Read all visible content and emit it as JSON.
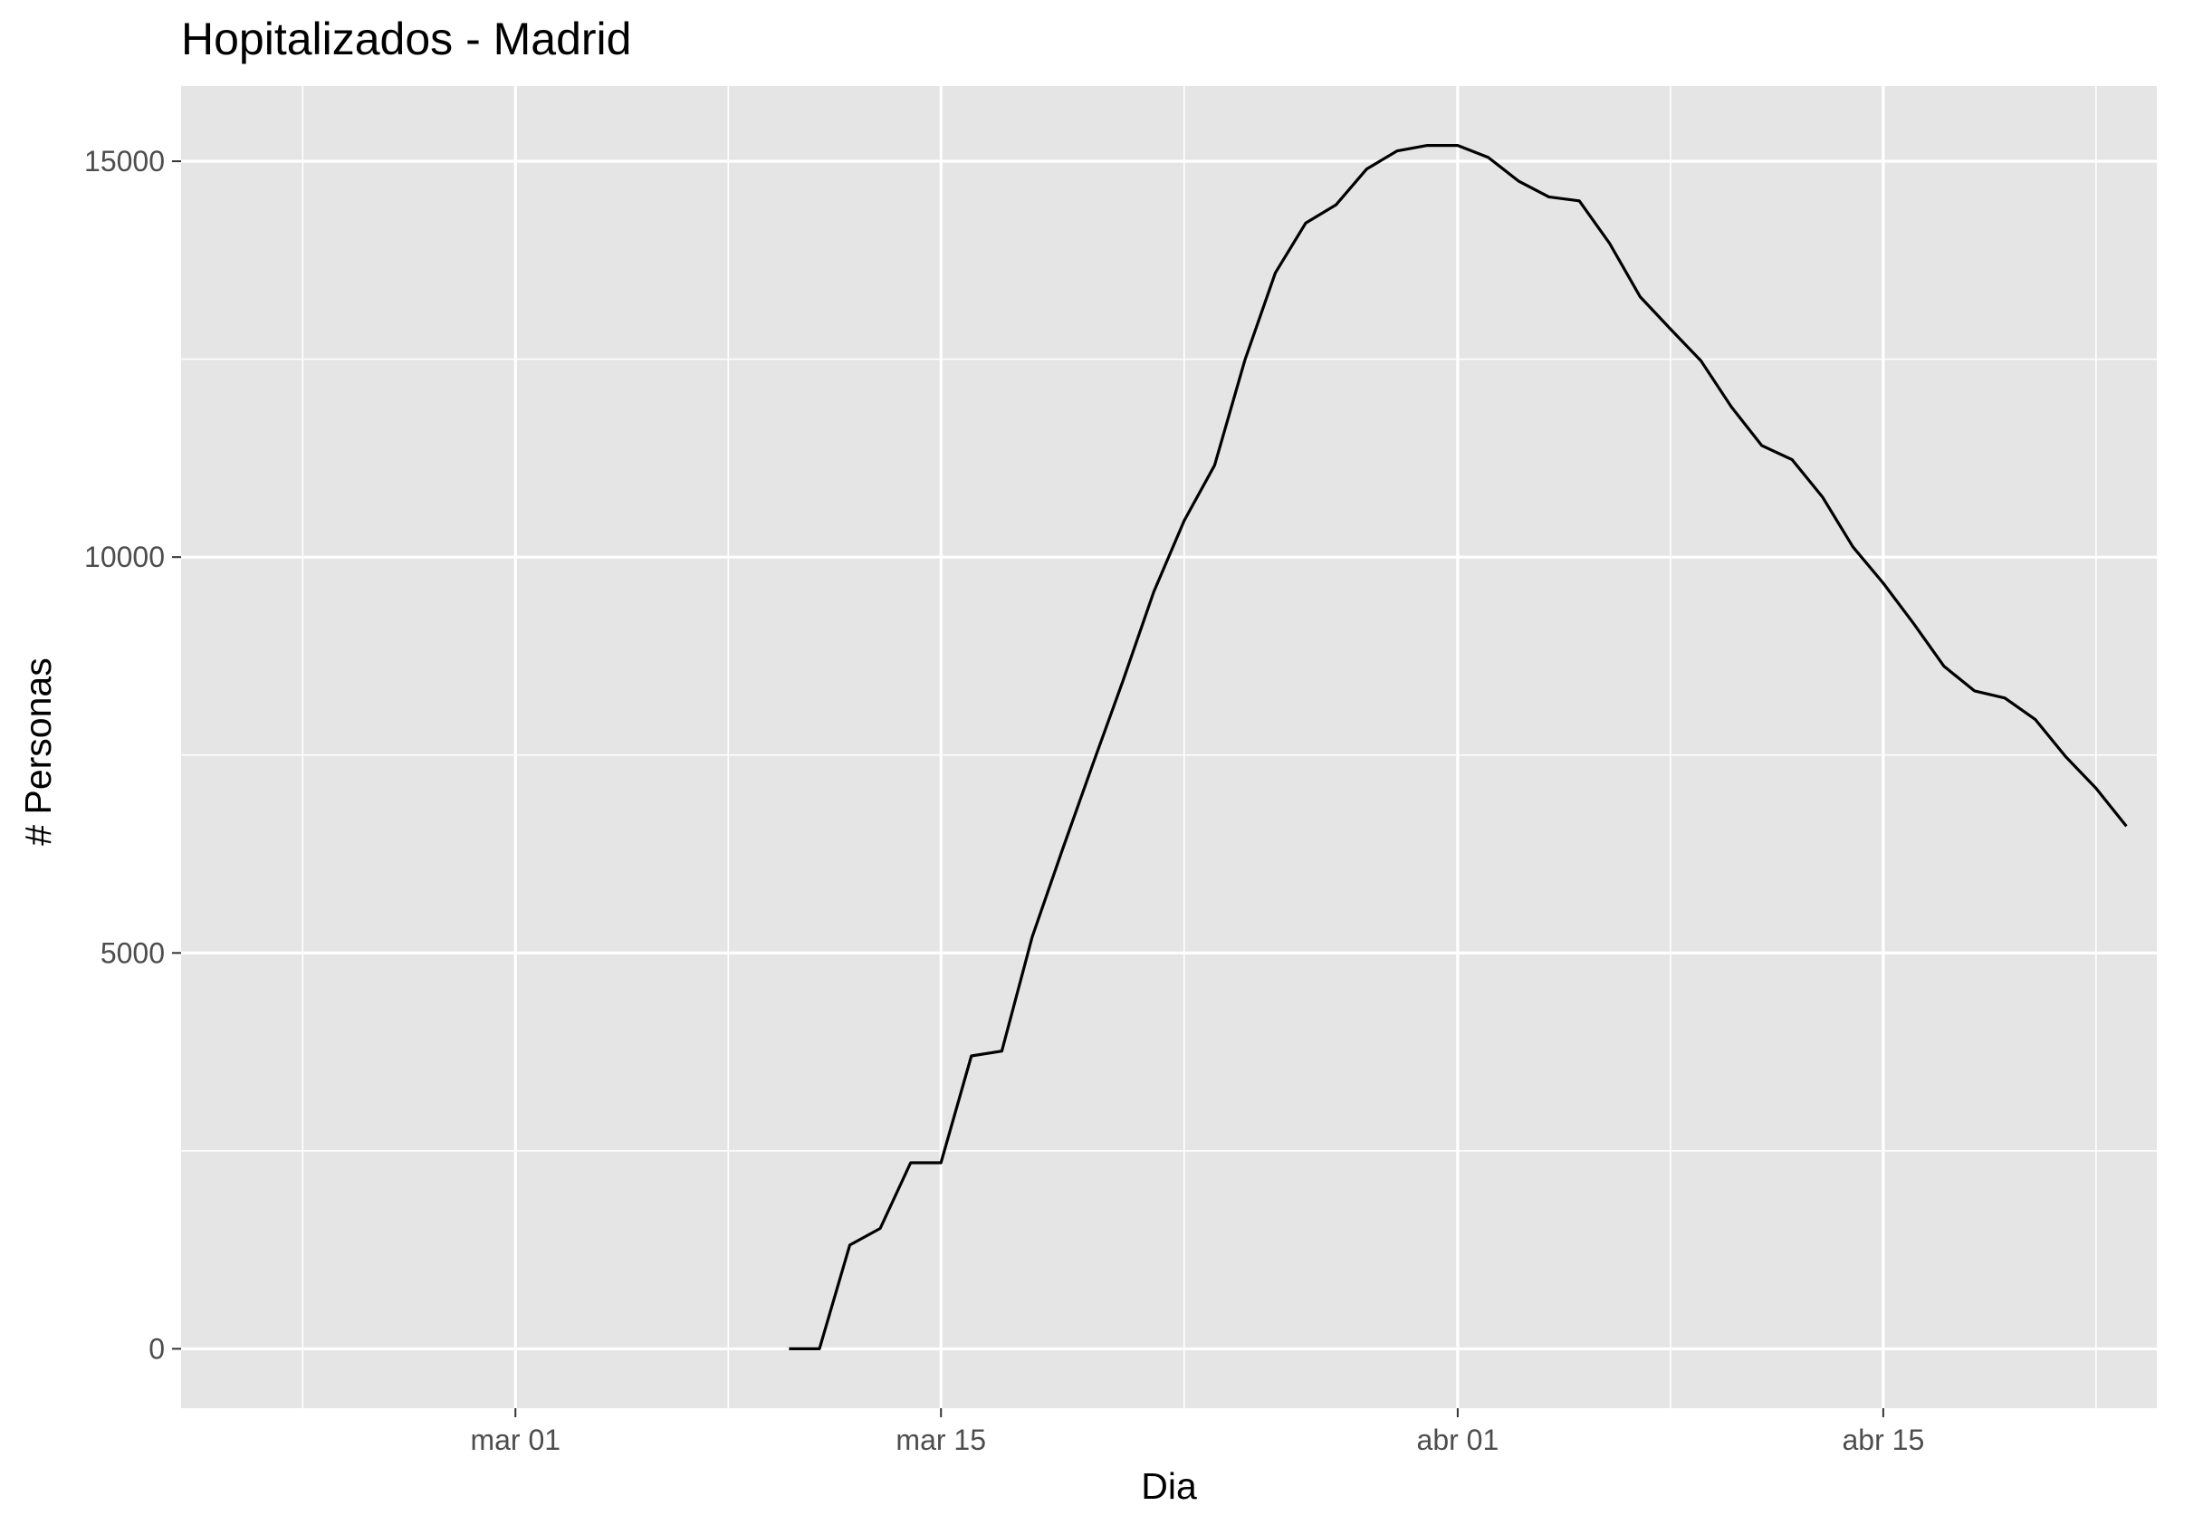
{
  "chart_data": {
    "type": "line",
    "title": "Hopitalizados - Madrid",
    "xlabel": "Dia",
    "ylabel": "# Personas",
    "x_axis_type": "date",
    "xlim": [
      "2020-02-19",
      "2020-04-24"
    ],
    "ylim": [
      -750,
      15950
    ],
    "x_major_ticks": [
      "2020-03-01",
      "2020-03-15",
      "2020-04-01",
      "2020-04-15"
    ],
    "x_tick_labels": [
      "mar 01",
      "mar 15",
      "abr 01",
      "abr 15"
    ],
    "x_minor_gridlines": [
      "2020-02-23",
      "2020-03-08",
      "2020-03-23",
      "2020-04-08",
      "2020-04-22"
    ],
    "y_major_ticks": [
      0,
      5000,
      10000,
      15000
    ],
    "y_tick_labels": [
      "0",
      "5000",
      "10000",
      "15000"
    ],
    "y_minor_gridlines": [
      2500,
      7500,
      12500
    ],
    "grid": true,
    "legend": "none",
    "colors": {
      "panel_background": "#e5e5e5",
      "gridline": "#ffffff",
      "line": "#000000",
      "tick_label": "#4d4d4d",
      "tick_mark": "#333333"
    },
    "series": [
      {
        "x": [
          "2020-03-10",
          "2020-03-11",
          "2020-03-12",
          "2020-03-13",
          "2020-03-14",
          "2020-03-15",
          "2020-03-16",
          "2020-03-17",
          "2020-03-18",
          "2020-03-19",
          "2020-03-20",
          "2020-03-21",
          "2020-03-22",
          "2020-03-23",
          "2020-03-24",
          "2020-03-25",
          "2020-03-26",
          "2020-03-27",
          "2020-03-28",
          "2020-03-29",
          "2020-03-30",
          "2020-03-31",
          "2020-04-01",
          "2020-04-02",
          "2020-04-03",
          "2020-04-04",
          "2020-04-05",
          "2020-04-06",
          "2020-04-07",
          "2020-04-08",
          "2020-04-09",
          "2020-04-10",
          "2020-04-11",
          "2020-04-12",
          "2020-04-13",
          "2020-04-14",
          "2020-04-15",
          "2020-04-16",
          "2020-04-17",
          "2020-04-18",
          "2020-04-19",
          "2020-04-20",
          "2020-04-21",
          "2020-04-22",
          "2020-04-23"
        ],
        "values": [
          0,
          0,
          1310,
          1520,
          2350,
          2350,
          3700,
          3760,
          5200,
          6310,
          7390,
          8450,
          9560,
          10460,
          11160,
          12490,
          13590,
          14220,
          14450,
          14900,
          15130,
          15200,
          15200,
          15050,
          14750,
          14550,
          14500,
          13960,
          13290,
          12880,
          12480,
          11900,
          11410,
          11230,
          10760,
          10130,
          9670,
          9160,
          8620,
          8310,
          8220,
          7950,
          7480,
          7080,
          6600
        ]
      }
    ]
  }
}
